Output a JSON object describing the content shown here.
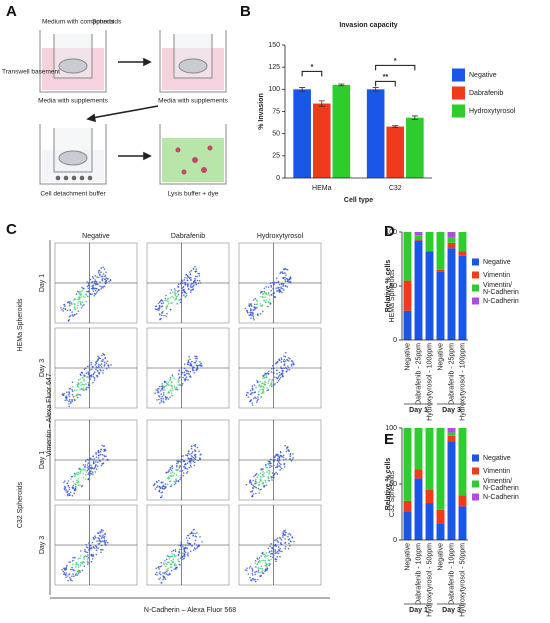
{
  "panels": {
    "a": "A",
    "b": "B",
    "c": "C",
    "d": "D",
    "e": "E"
  },
  "diagram": {
    "medium": "Medium with compounds",
    "spheroids": "Spheroids",
    "basement": "Transwell basement",
    "media1": "Media with supplements",
    "media2": "Media with supplements",
    "detach": "Cell detachment buffer",
    "lysis": "Lysis buffer + dye"
  },
  "flow": {
    "columns": [
      "Negative",
      "Dabrafenib",
      "Hydroxytyrosol"
    ],
    "rows": [
      "Day 1",
      "Day 3",
      "Day 1",
      "Day 3"
    ],
    "groups": [
      "HEMa Spheroids",
      "C32 Spheroids"
    ],
    "y_axis": "Vimentin – Alexa Fluor 647",
    "x_axis": "N-Cadherin – Alexa Fluor 568"
  },
  "chart_data": [
    {
      "type": "bar",
      "title": "Invasion capacity",
      "y_label": "% Invasion",
      "x_label": "Cell type",
      "categories": [
        "HEMa",
        "C32"
      ],
      "series": [
        {
          "name": "Negative",
          "color": "#1a56e8",
          "values": [
            100,
            100
          ],
          "errors": [
            2,
            2
          ]
        },
        {
          "name": "Dabrafenib",
          "color": "#f03a1c",
          "values": [
            84,
            58
          ],
          "errors": [
            3,
            1
          ]
        },
        {
          "name": "Hydroxytyrosol",
          "color": "#2ecc2e",
          "values": [
            105,
            68
          ],
          "errors": [
            1,
            2
          ]
        }
      ],
      "annotations": [
        "*",
        "**",
        "*"
      ],
      "ylim": [
        0,
        150
      ],
      "yticks": [
        0,
        25,
        50,
        75,
        100,
        125,
        150
      ],
      "grid": false
    },
    {
      "type": "stacked_bar",
      "title": "HEMa Spheroids",
      "y_label": "Relative % cells",
      "categories": [
        "Negative",
        "Dabrafenib - 25ppm",
        "Hydroxytyrosol - 100ppm",
        "Negative",
        "Dabrafenib - 25ppm",
        "Hydroxytyrosol - 100ppm"
      ],
      "groups": [
        "Day 1",
        "Day 3"
      ],
      "series": [
        {
          "name": "Negative",
          "color": "#1a56e8",
          "values": [
            27,
            92,
            82,
            63,
            85,
            78
          ]
        },
        {
          "name": "Vimentin",
          "color": "#f03a1c",
          "values": [
            28,
            1,
            0,
            2,
            5,
            4
          ]
        },
        {
          "name": "Vimentin/N-Cadherin",
          "color": "#2ecc2e",
          "values": [
            45,
            4,
            18,
            35,
            5,
            18
          ]
        },
        {
          "name": "N-Cadherin",
          "color": "#b04de0",
          "values": [
            0,
            3,
            0,
            0,
            5,
            0
          ]
        }
      ],
      "ylim": [
        0,
        100
      ],
      "yticks": [
        0,
        50,
        100
      ]
    },
    {
      "type": "stacked_bar",
      "title": "C32 Spheroids",
      "y_label": "Relative % cells",
      "categories": [
        "Negative",
        "Dabrafenib - 10ppm",
        "Hydroxytyrosol - 50ppm",
        "Negative",
        "Dabrafenib - 10ppm",
        "Hydroxytyrosol - 50ppm"
      ],
      "groups": [
        "Day 1",
        "Day 3"
      ],
      "series": [
        {
          "name": "Negative",
          "color": "#1a56e8",
          "values": [
            25,
            55,
            33,
            15,
            88,
            30
          ]
        },
        {
          "name": "Vimentin",
          "color": "#f03a1c",
          "values": [
            10,
            8,
            12,
            12,
            5,
            10
          ]
        },
        {
          "name": "Vimentin/N-Cadherin",
          "color": "#2ecc2e",
          "values": [
            65,
            37,
            55,
            73,
            3,
            60
          ]
        },
        {
          "name": "N-Cadherin",
          "color": "#b04de0",
          "values": [
            0,
            0,
            0,
            0,
            4,
            0
          ]
        }
      ],
      "ylim": [
        0,
        100
      ],
      "yticks": [
        0,
        50,
        100
      ]
    }
  ]
}
